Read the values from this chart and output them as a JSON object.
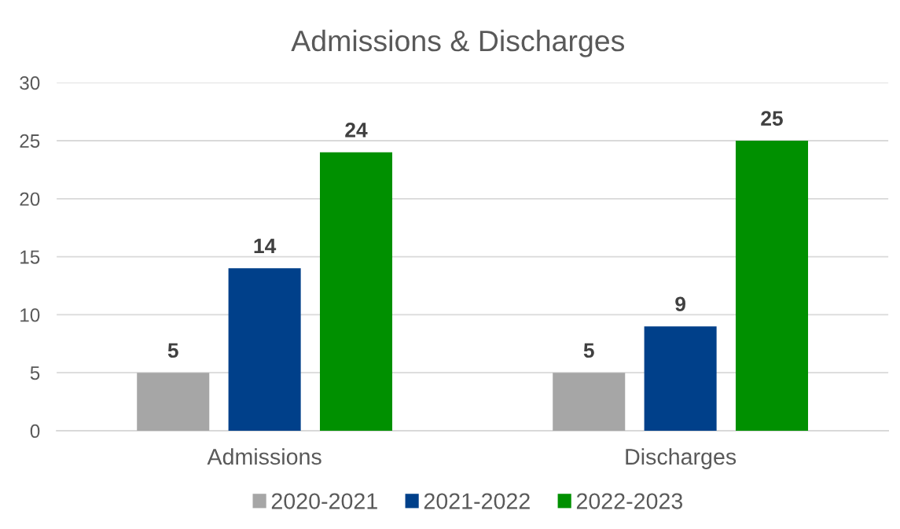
{
  "chart_data": {
    "type": "bar",
    "title": "Admissions & Discharges",
    "categories": [
      "Admissions",
      "Discharges"
    ],
    "series": [
      {
        "name": "2020-2021",
        "color": "#a6a6a6",
        "values": [
          5,
          5
        ]
      },
      {
        "name": "2021-2022",
        "color": "#00408a",
        "values": [
          14,
          9
        ]
      },
      {
        "name": "2022-2023",
        "color": "#009000",
        "values": [
          24,
          25
        ]
      }
    ],
    "ylim": [
      0,
      30
    ],
    "yticks": [
      0,
      5,
      10,
      15,
      20,
      25,
      30
    ],
    "grid": "y",
    "legend": "bottom",
    "data_labels": true
  }
}
